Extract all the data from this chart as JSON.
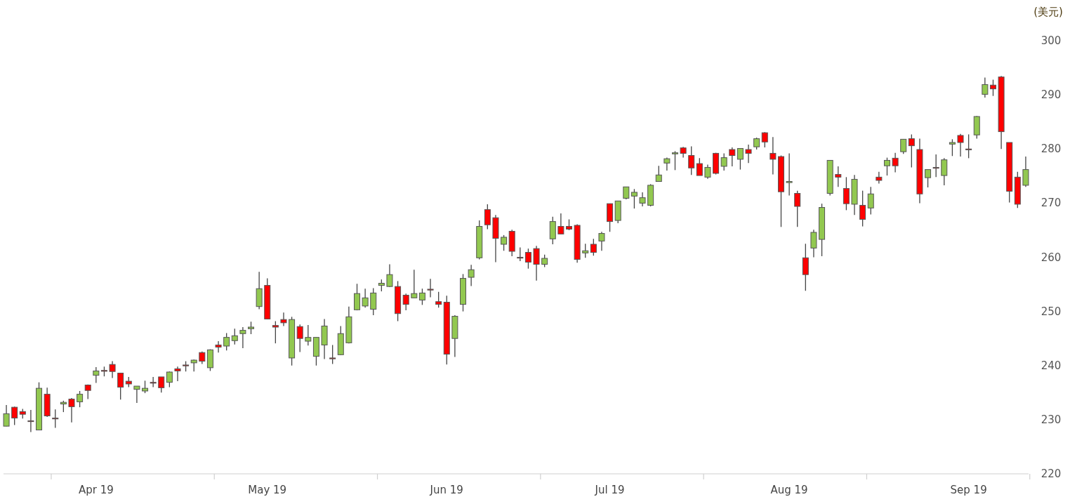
{
  "chart_data": {
    "type": "candlestick",
    "ylabel": "(美元)",
    "ylim": [
      220,
      300
    ],
    "yticks": [
      220,
      230,
      240,
      250,
      260,
      270,
      280,
      290,
      300
    ],
    "categories": [
      null,
      null,
      null,
      null,
      null,
      null,
      null,
      null,
      null,
      null,
      null,
      "Apr 19",
      null,
      null,
      null,
      null,
      null,
      null,
      null,
      null,
      null,
      null,
      null,
      null,
      null,
      null,
      null,
      null,
      null,
      null,
      null,
      null,
      "May 19",
      null,
      null,
      null,
      null,
      null,
      null,
      null,
      null,
      null,
      null,
      null,
      null,
      null,
      null,
      null,
      null,
      null,
      null,
      null,
      null,
      null,
      "Jun 19",
      null,
      null,
      null,
      null,
      null,
      null,
      null,
      null,
      null,
      null,
      null,
      null,
      null,
      null,
      null,
      null,
      null,
      null,
      null,
      "Jul 19",
      null,
      null,
      null,
      null,
      null,
      null,
      null,
      null,
      null,
      null,
      null,
      null,
      null,
      null,
      null,
      null,
      null,
      null,
      null,
      null,
      null,
      "Aug 19",
      null,
      null,
      null,
      null,
      null,
      null,
      null,
      null,
      null,
      null,
      null,
      null,
      null,
      null,
      null,
      null,
      null,
      null,
      null,
      null,
      null,
      "Sep 19",
      null,
      null,
      null,
      null,
      null,
      null,
      null
    ],
    "ohlc": [
      [
        228.8,
        232.7,
        228.8,
        231.1
      ],
      [
        232.3,
        232.4,
        229.0,
        230.3
      ],
      [
        231.5,
        232.0,
        230.2,
        231.0
      ],
      [
        229.8,
        231.8,
        227.7,
        229.7
      ],
      [
        228.1,
        236.9,
        228.1,
        235.8
      ],
      [
        234.7,
        235.9,
        230.5,
        230.7
      ],
      [
        230.3,
        231.9,
        228.5,
        230.2
      ],
      [
        232.9,
        233.5,
        231.4,
        233.2
      ],
      [
        233.8,
        234.0,
        229.5,
        232.4
      ],
      [
        233.3,
        235.3,
        232.3,
        234.7
      ],
      [
        236.4,
        236.5,
        233.8,
        235.4
      ],
      [
        238.2,
        239.7,
        236.8,
        239.0
      ],
      [
        239.1,
        239.8,
        238.0,
        239.0
      ],
      [
        240.2,
        240.8,
        237.7,
        238.9
      ],
      [
        238.6,
        238.6,
        233.7,
        236.0
      ],
      [
        237.1,
        237.9,
        236.0,
        236.6
      ],
      [
        235.6,
        236.2,
        233.1,
        236.2
      ],
      [
        235.3,
        237.2,
        234.9,
        235.8
      ],
      [
        236.9,
        237.9,
        236.0,
        236.8
      ],
      [
        237.9,
        237.9,
        235.0,
        235.9
      ],
      [
        236.9,
        238.9,
        236.0,
        238.8
      ],
      [
        239.4,
        239.8,
        237.1,
        239.0
      ],
      [
        240.1,
        240.8,
        238.9,
        240.0
      ],
      [
        240.5,
        241.1,
        238.9,
        241.0
      ],
      [
        242.4,
        242.6,
        240.3,
        240.8
      ],
      [
        239.6,
        243.0,
        239.0,
        242.9
      ],
      [
        243.8,
        244.5,
        242.4,
        243.4
      ],
      [
        243.6,
        246.0,
        242.8,
        245.2
      ],
      [
        244.6,
        246.8,
        243.9,
        245.5
      ],
      [
        245.9,
        247.1,
        243.2,
        246.5
      ],
      [
        246.8,
        248.1,
        245.8,
        247.1
      ],
      [
        250.9,
        257.3,
        250.4,
        254.2
      ],
      [
        254.8,
        256.1,
        248.6,
        248.6
      ],
      [
        247.4,
        248.2,
        244.1,
        247.1
      ],
      [
        248.5,
        249.8,
        247.3,
        247.9
      ],
      [
        241.4,
        249.0,
        240.0,
        248.5
      ],
      [
        247.2,
        247.6,
        242.5,
        245.0
      ],
      [
        244.5,
        247.5,
        243.7,
        245.2
      ],
      [
        241.7,
        245.2,
        240.0,
        245.2
      ],
      [
        243.8,
        248.6,
        241.2,
        247.3
      ],
      [
        241.4,
        243.8,
        240.3,
        241.3
      ],
      [
        242.0,
        247.3,
        241.9,
        245.9
      ],
      [
        244.2,
        250.9,
        244.1,
        249.0
      ],
      [
        250.3,
        255.1,
        250.2,
        253.3
      ],
      [
        251.0,
        254.2,
        250.7,
        252.5
      ],
      [
        250.4,
        254.3,
        249.3,
        253.4
      ],
      [
        254.8,
        255.9,
        253.7,
        255.2
      ],
      [
        254.6,
        258.7,
        254.5,
        256.8
      ],
      [
        254.6,
        255.6,
        248.2,
        249.6
      ],
      [
        253.0,
        253.3,
        250.2,
        251.3
      ],
      [
        252.5,
        257.7,
        252.5,
        253.3
      ],
      [
        252.1,
        254.2,
        251.2,
        253.4
      ],
      [
        254.1,
        256.0,
        252.6,
        254.0
      ],
      [
        251.8,
        253.6,
        250.7,
        251.3
      ],
      [
        251.7,
        252.9,
        240.2,
        242.1
      ],
      [
        245.0,
        249.3,
        241.6,
        249.1
      ],
      [
        251.3,
        256.9,
        250.0,
        256.1
      ],
      [
        256.3,
        258.6,
        254.7,
        257.7
      ],
      [
        259.9,
        266.8,
        259.6,
        265.7
      ],
      [
        268.8,
        269.8,
        265.2,
        266.0
      ],
      [
        267.3,
        267.8,
        259.1,
        263.5
      ],
      [
        262.4,
        264.1,
        261.2,
        263.7
      ],
      [
        264.8,
        265.1,
        260.2,
        261.1
      ],
      [
        260.0,
        261.8,
        259.3,
        259.9
      ],
      [
        260.9,
        261.6,
        257.9,
        259.1
      ],
      [
        261.6,
        262.1,
        255.7,
        258.7
      ],
      [
        258.7,
        260.5,
        258.2,
        259.8
      ],
      [
        263.4,
        267.5,
        262.4,
        266.6
      ],
      [
        265.7,
        268.1,
        264.3,
        264.3
      ],
      [
        265.7,
        267.0,
        265.0,
        265.2
      ],
      [
        265.9,
        266.1,
        259.0,
        259.6
      ],
      [
        260.8,
        262.5,
        259.9,
        261.2
      ],
      [
        262.4,
        263.4,
        260.3,
        260.9
      ],
      [
        263.0,
        264.7,
        261.2,
        264.4
      ],
      [
        269.9,
        269.9,
        264.7,
        266.6
      ],
      [
        266.8,
        270.4,
        266.3,
        270.4
      ],
      [
        270.9,
        273.0,
        270.7,
        273.0
      ],
      [
        271.3,
        272.6,
        269.0,
        272.0
      ],
      [
        270.0,
        272.0,
        269.4,
        271.0
      ],
      [
        269.6,
        273.5,
        269.4,
        273.3
      ],
      [
        274.0,
        276.9,
        274.0,
        275.2
      ],
      [
        277.4,
        278.4,
        276.0,
        278.2
      ],
      [
        279.1,
        279.6,
        276.1,
        279.3
      ],
      [
        280.2,
        280.4,
        278.4,
        279.2
      ],
      [
        278.8,
        280.5,
        275.2,
        276.5
      ],
      [
        277.3,
        278.3,
        275.1,
        275.1
      ],
      [
        274.8,
        277.1,
        274.5,
        276.6
      ],
      [
        279.2,
        279.3,
        275.3,
        275.5
      ],
      [
        276.8,
        279.2,
        276.0,
        278.4
      ],
      [
        279.9,
        280.3,
        276.8,
        278.8
      ],
      [
        278.1,
        280.1,
        276.2,
        280.1
      ],
      [
        279.9,
        280.8,
        277.4,
        279.2
      ],
      [
        280.4,
        282.1,
        279.9,
        281.9
      ],
      [
        283.0,
        283.1,
        280.3,
        281.3
      ],
      [
        279.2,
        282.2,
        275.3,
        278.1
      ],
      [
        278.6,
        278.8,
        265.6,
        272.1
      ],
      [
        273.8,
        279.2,
        271.4,
        274.0
      ],
      [
        271.8,
        272.3,
        265.6,
        269.4
      ],
      [
        259.9,
        262.5,
        253.8,
        256.8
      ],
      [
        261.7,
        265.1,
        260.0,
        264.6
      ],
      [
        263.3,
        269.9,
        260.2,
        269.2
      ],
      [
        271.8,
        277.9,
        271.4,
        277.9
      ],
      [
        275.3,
        276.8,
        273.0,
        274.8
      ],
      [
        272.7,
        274.8,
        268.7,
        269.9
      ],
      [
        269.8,
        275.2,
        267.8,
        274.4
      ],
      [
        269.6,
        272.3,
        265.7,
        267.0
      ],
      [
        269.1,
        273.0,
        267.9,
        271.7
      ],
      [
        274.8,
        275.8,
        273.6,
        274.2
      ],
      [
        276.9,
        278.4,
        275.1,
        277.9
      ],
      [
        278.3,
        279.3,
        275.7,
        276.9
      ],
      [
        279.5,
        281.8,
        279.1,
        281.8
      ],
      [
        281.9,
        282.7,
        276.6,
        280.6
      ],
      [
        279.9,
        281.9,
        270.0,
        271.7
      ],
      [
        274.7,
        276.2,
        272.9,
        276.2
      ],
      [
        276.6,
        279.0,
        274.8,
        276.5
      ],
      [
        275.1,
        278.3,
        273.3,
        278.0
      ],
      [
        280.9,
        281.8,
        278.7,
        281.2
      ],
      [
        282.5,
        282.8,
        278.6,
        281.2
      ],
      [
        280.0,
        282.7,
        278.3,
        279.9
      ],
      [
        282.6,
        286.1,
        281.9,
        286.0
      ],
      [
        290.1,
        293.2,
        289.5,
        291.9
      ],
      [
        291.8,
        292.8,
        289.8,
        291.1
      ],
      [
        293.3,
        293.5,
        280.0,
        283.2
      ],
      [
        281.2,
        281.2,
        270.1,
        272.2
      ],
      [
        274.8,
        275.8,
        269.1,
        269.8
      ],
      [
        273.3,
        278.6,
        273.0,
        276.2
      ]
    ]
  }
}
